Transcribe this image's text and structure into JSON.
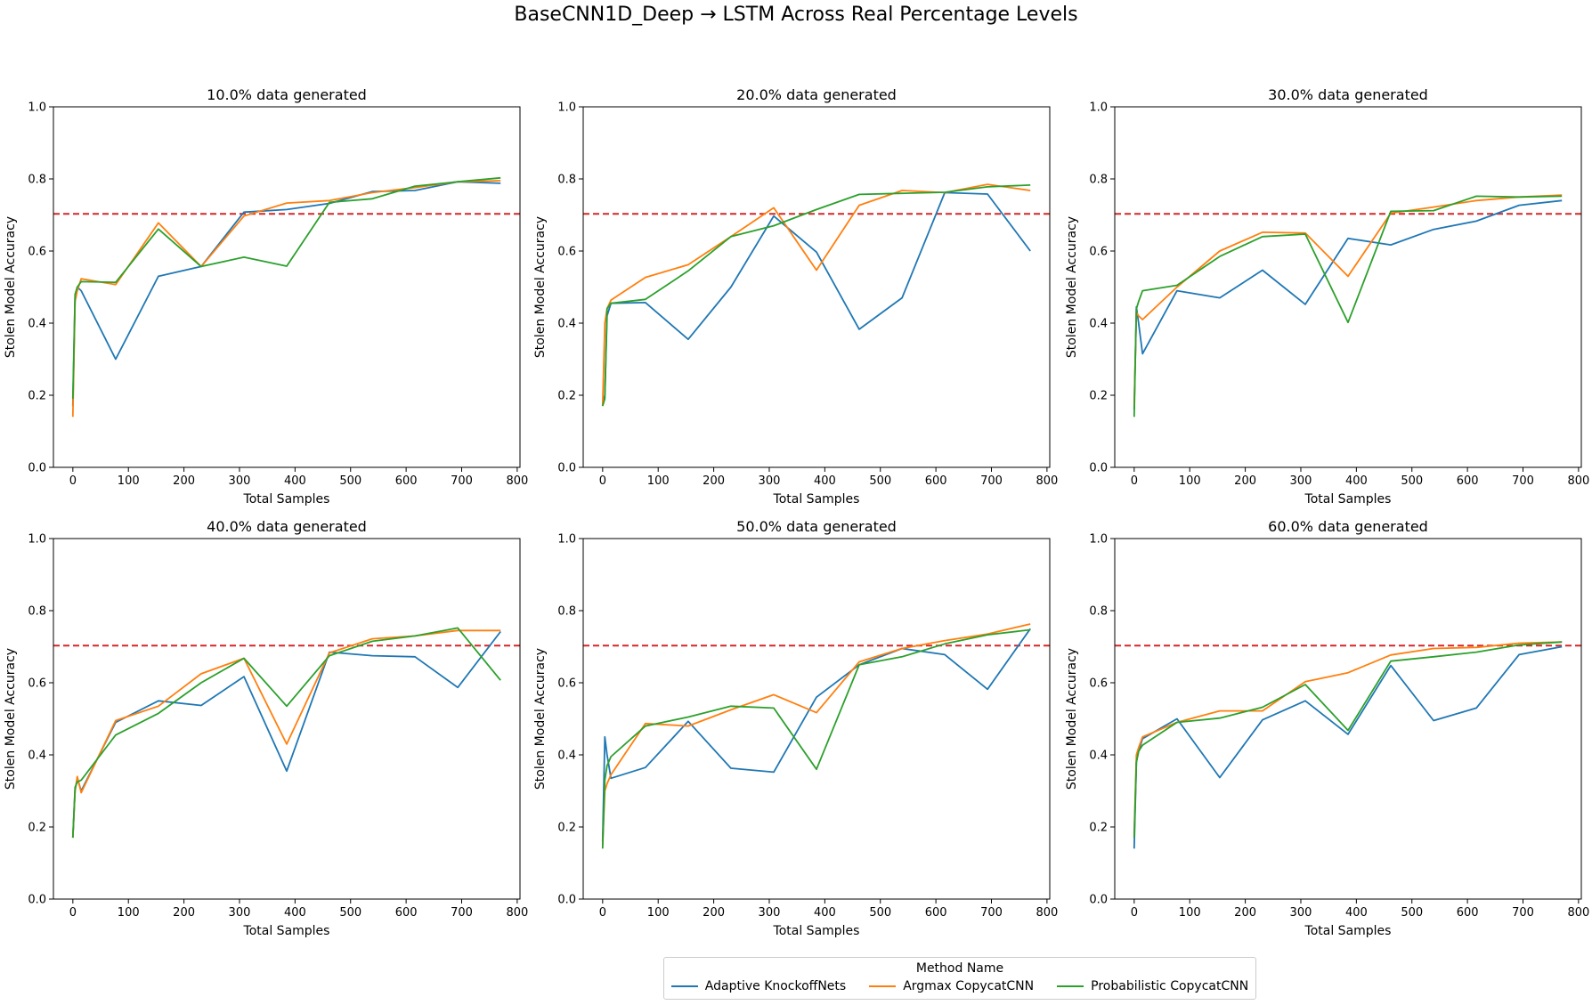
{
  "figure": {
    "suptitle": "BaseCNN1D_Deep → LSTM Across Real Percentage Levels"
  },
  "legend": {
    "title": "Method Name",
    "placement": "lower-center",
    "items": [
      {
        "label": "Adaptive KnockoffNets",
        "color": "#1f77b4"
      },
      {
        "label": "Argmax CopycatCNN",
        "color": "#ff7f0e"
      },
      {
        "label": "Probabilistic CopycatCNN",
        "color": "#2ca02c"
      }
    ]
  },
  "chart_data": [
    {
      "type": "line",
      "title": "10.0% data generated",
      "xlabel": "Total Samples",
      "ylabel": "Stolen Model Accuracy",
      "xlim": [
        -35,
        805
      ],
      "ylim": [
        0.0,
        1.0
      ],
      "xticks": [
        0,
        100,
        200,
        300,
        400,
        500,
        600,
        700,
        800
      ],
      "yticks": [
        0.0,
        0.2,
        0.4,
        0.6,
        0.8,
        1.0
      ],
      "hline": {
        "y": 0.703,
        "color": "#d62728",
        "style": "dashed"
      },
      "x": [
        0,
        4,
        8,
        15,
        77,
        154,
        231,
        308,
        385,
        462,
        539,
        616,
        693,
        770
      ],
      "series": [
        {
          "name": "Adaptive KnockoffNets",
          "color": "#1f77b4",
          "values": [
            0.17,
            0.47,
            0.5,
            0.49,
            0.3,
            0.53,
            0.557,
            0.708,
            0.715,
            0.732,
            0.765,
            0.768,
            0.792,
            0.788
          ]
        },
        {
          "name": "Argmax CopycatCNN",
          "color": "#ff7f0e",
          "values": [
            0.14,
            0.46,
            0.49,
            0.523,
            0.507,
            0.678,
            0.557,
            0.697,
            0.733,
            0.74,
            0.762,
            0.776,
            0.792,
            0.795
          ]
        },
        {
          "name": "Probabilistic CopycatCNN",
          "color": "#2ca02c",
          "values": [
            0.19,
            0.48,
            0.5,
            0.515,
            0.513,
            0.661,
            0.557,
            0.583,
            0.558,
            0.735,
            0.745,
            0.78,
            0.792,
            0.803
          ]
        }
      ]
    },
    {
      "type": "line",
      "title": "20.0% data generated",
      "xlabel": "Total Samples",
      "ylabel": "Stolen Model Accuracy",
      "xlim": [
        -35,
        805
      ],
      "ylim": [
        0.0,
        1.0
      ],
      "xticks": [
        0,
        100,
        200,
        300,
        400,
        500,
        600,
        700,
        800
      ],
      "yticks": [
        0.0,
        0.2,
        0.4,
        0.6,
        0.8,
        1.0
      ],
      "hline": {
        "y": 0.703,
        "color": "#d62728",
        "style": "dashed"
      },
      "x": [
        0,
        4,
        8,
        15,
        77,
        154,
        231,
        308,
        385,
        462,
        539,
        616,
        693,
        770
      ],
      "series": [
        {
          "name": "Adaptive KnockoffNets",
          "color": "#1f77b4",
          "values": [
            0.18,
            0.2,
            0.42,
            0.455,
            0.457,
            0.355,
            0.5,
            0.697,
            0.597,
            0.383,
            0.47,
            0.762,
            0.758,
            0.6
          ]
        },
        {
          "name": "Argmax CopycatCNN",
          "color": "#ff7f0e",
          "values": [
            0.17,
            0.4,
            0.44,
            0.464,
            0.527,
            0.562,
            0.64,
            0.72,
            0.547,
            0.727,
            0.768,
            0.762,
            0.785,
            0.768
          ]
        },
        {
          "name": "Probabilistic CopycatCNN",
          "color": "#2ca02c",
          "values": [
            0.17,
            0.19,
            0.44,
            0.455,
            0.466,
            0.545,
            0.64,
            0.67,
            0.715,
            0.757,
            0.76,
            0.763,
            0.778,
            0.783
          ]
        }
      ]
    },
    {
      "type": "line",
      "title": "30.0% data generated",
      "xlabel": "Total Samples",
      "ylabel": "Stolen Model Accuracy",
      "xlim": [
        -35,
        805
      ],
      "ylim": [
        0.0,
        1.0
      ],
      "xticks": [
        0,
        100,
        200,
        300,
        400,
        500,
        600,
        700,
        800
      ],
      "yticks": [
        0.0,
        0.2,
        0.4,
        0.6,
        0.8,
        1.0
      ],
      "hline": {
        "y": 0.703,
        "color": "#d62728",
        "style": "dashed"
      },
      "x": [
        0,
        4,
        8,
        15,
        77,
        154,
        231,
        308,
        385,
        462,
        539,
        616,
        693,
        770
      ],
      "series": [
        {
          "name": "Adaptive KnockoffNets",
          "color": "#1f77b4",
          "values": [
            0.16,
            0.445,
            0.4,
            0.315,
            0.49,
            0.47,
            0.547,
            0.452,
            0.635,
            0.617,
            0.66,
            0.683,
            0.727,
            0.74
          ]
        },
        {
          "name": "Argmax CopycatCNN",
          "color": "#ff7f0e",
          "values": [
            0.17,
            0.43,
            0.42,
            0.41,
            0.5,
            0.6,
            0.652,
            0.65,
            0.53,
            0.705,
            0.722,
            0.74,
            0.75,
            0.755
          ]
        },
        {
          "name": "Probabilistic CopycatCNN",
          "color": "#2ca02c",
          "values": [
            0.14,
            0.44,
            0.46,
            0.49,
            0.505,
            0.585,
            0.64,
            0.647,
            0.402,
            0.71,
            0.712,
            0.752,
            0.75,
            0.752
          ]
        }
      ]
    },
    {
      "type": "line",
      "title": "40.0% data generated",
      "xlabel": "Total Samples",
      "ylabel": "Stolen Model Accuracy",
      "xlim": [
        -35,
        805
      ],
      "ylim": [
        0.0,
        1.0
      ],
      "xticks": [
        0,
        100,
        200,
        300,
        400,
        500,
        600,
        700,
        800
      ],
      "yticks": [
        0.0,
        0.2,
        0.4,
        0.6,
        0.8,
        1.0
      ],
      "hline": {
        "y": 0.703,
        "color": "#d62728",
        "style": "dashed"
      },
      "x": [
        0,
        4,
        8,
        15,
        77,
        154,
        231,
        308,
        385,
        462,
        539,
        616,
        693,
        770
      ],
      "series": [
        {
          "name": "Adaptive KnockoffNets",
          "color": "#1f77b4",
          "values": [
            0.17,
            0.3,
            0.335,
            0.3,
            0.49,
            0.55,
            0.537,
            0.617,
            0.355,
            0.685,
            0.675,
            0.672,
            0.587,
            0.742
          ]
        },
        {
          "name": "Argmax CopycatCNN",
          "color": "#ff7f0e",
          "values": [
            0.17,
            0.3,
            0.34,
            0.295,
            0.495,
            0.535,
            0.625,
            0.668,
            0.43,
            0.683,
            0.722,
            0.73,
            0.745,
            0.745
          ]
        },
        {
          "name": "Probabilistic CopycatCNN",
          "color": "#2ca02c",
          "values": [
            0.17,
            0.31,
            0.325,
            0.33,
            0.455,
            0.515,
            0.6,
            0.668,
            0.535,
            0.675,
            0.715,
            0.73,
            0.752,
            0.607
          ]
        }
      ]
    },
    {
      "type": "line",
      "title": "50.0% data generated",
      "xlabel": "Total Samples",
      "ylabel": "Stolen Model Accuracy",
      "xlim": [
        -35,
        805
      ],
      "ylim": [
        0.0,
        1.0
      ],
      "xticks": [
        0,
        100,
        200,
        300,
        400,
        500,
        600,
        700,
        800
      ],
      "yticks": [
        0.0,
        0.2,
        0.4,
        0.6,
        0.8,
        1.0
      ],
      "hline": {
        "y": 0.703,
        "color": "#d62728",
        "style": "dashed"
      },
      "x": [
        0,
        4,
        8,
        15,
        77,
        154,
        231,
        308,
        385,
        462,
        539,
        616,
        693,
        770
      ],
      "series": [
        {
          "name": "Adaptive KnockoffNets",
          "color": "#1f77b4",
          "values": [
            0.16,
            0.45,
            0.4,
            0.335,
            0.365,
            0.493,
            0.363,
            0.352,
            0.56,
            0.65,
            0.695,
            0.678,
            0.582,
            0.75
          ]
        },
        {
          "name": "Argmax CopycatCNN",
          "color": "#ff7f0e",
          "values": [
            0.15,
            0.3,
            0.32,
            0.345,
            0.487,
            0.48,
            0.525,
            0.567,
            0.517,
            0.658,
            0.695,
            0.717,
            0.735,
            0.763
          ]
        },
        {
          "name": "Probabilistic CopycatCNN",
          "color": "#2ca02c",
          "values": [
            0.14,
            0.33,
            0.37,
            0.395,
            0.48,
            0.505,
            0.535,
            0.53,
            0.36,
            0.65,
            0.672,
            0.708,
            0.733,
            0.747
          ]
        }
      ]
    },
    {
      "type": "line",
      "title": "60.0% data generated",
      "xlabel": "Total Samples",
      "ylabel": "Stolen Model Accuracy",
      "xlim": [
        -35,
        805
      ],
      "ylim": [
        0.0,
        1.0
      ],
      "xticks": [
        0,
        100,
        200,
        300,
        400,
        500,
        600,
        700,
        800
      ],
      "yticks": [
        0.0,
        0.2,
        0.4,
        0.6,
        0.8,
        1.0
      ],
      "hline": {
        "y": 0.703,
        "color": "#d62728",
        "style": "dashed"
      },
      "x": [
        0,
        4,
        8,
        15,
        77,
        154,
        231,
        308,
        385,
        462,
        539,
        616,
        693,
        770
      ],
      "series": [
        {
          "name": "Adaptive KnockoffNets",
          "color": "#1f77b4",
          "values": [
            0.14,
            0.38,
            0.41,
            0.445,
            0.5,
            0.337,
            0.497,
            0.55,
            0.457,
            0.648,
            0.495,
            0.53,
            0.678,
            0.7
          ]
        },
        {
          "name": "Argmax CopycatCNN",
          "color": "#ff7f0e",
          "values": [
            0.18,
            0.4,
            0.42,
            0.45,
            0.49,
            0.522,
            0.522,
            0.603,
            0.628,
            0.677,
            0.695,
            0.698,
            0.71,
            0.713
          ]
        },
        {
          "name": "Probabilistic CopycatCNN",
          "color": "#2ca02c",
          "values": [
            0.17,
            0.38,
            0.41,
            0.427,
            0.49,
            0.502,
            0.532,
            0.595,
            0.468,
            0.66,
            0.672,
            0.685,
            0.705,
            0.713
          ]
        }
      ]
    }
  ]
}
